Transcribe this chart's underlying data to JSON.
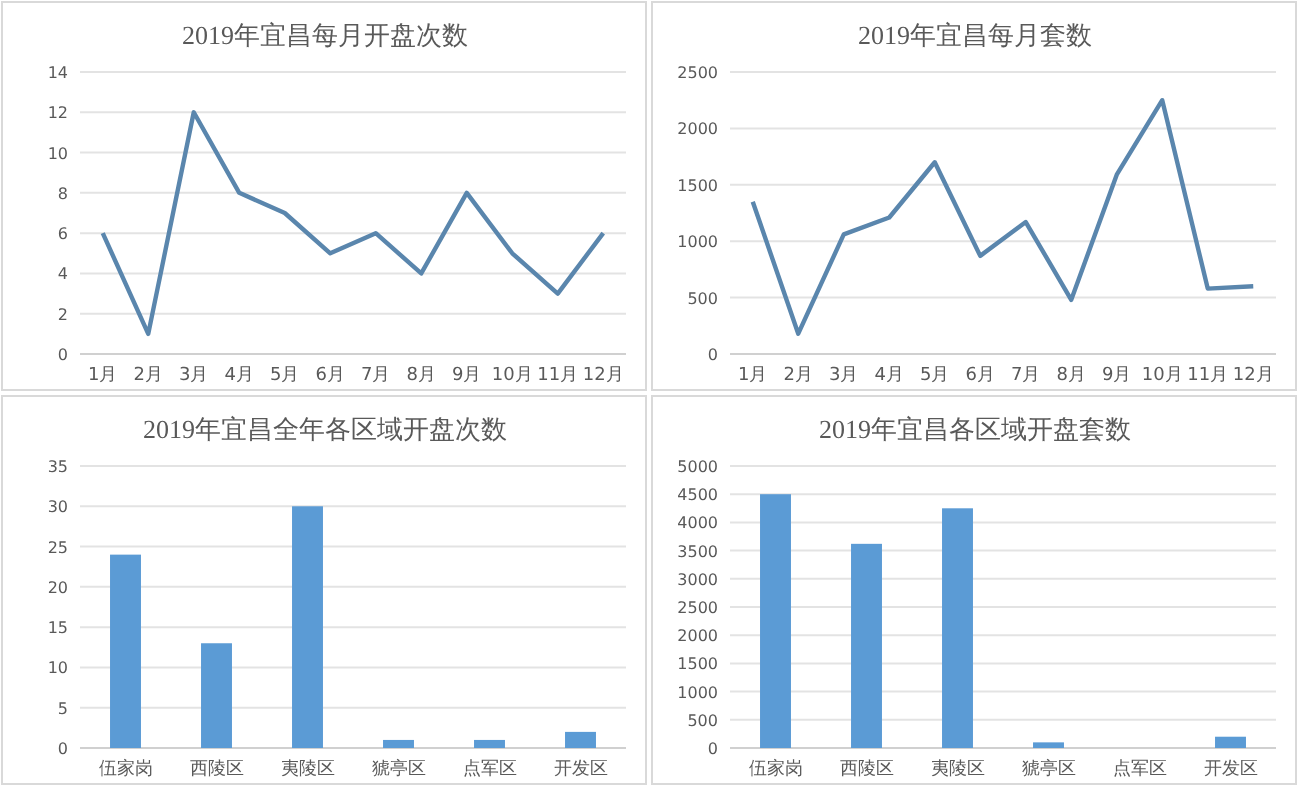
{
  "chart_data": [
    {
      "type": "line",
      "title": "2019年宜昌每月开盘次数",
      "categories": [
        "1月",
        "2月",
        "3月",
        "4月",
        "5月",
        "6月",
        "7月",
        "8月",
        "9月",
        "10月",
        "11月",
        "12月"
      ],
      "series": [
        {
          "color": "#5a86ad",
          "values": [
            6,
            1,
            12,
            8,
            7,
            5,
            6,
            4,
            8,
            5,
            3,
            6
          ]
        }
      ],
      "ylim": [
        0,
        14
      ],
      "yticks": [
        0,
        2,
        4,
        6,
        8,
        10,
        12,
        14
      ],
      "grid": "y",
      "marker": "none",
      "line_style": "solid"
    },
    {
      "type": "line",
      "title": "2019年宜昌每月套数",
      "categories": [
        "1月",
        "2月",
        "3月",
        "4月",
        "5月",
        "6月",
        "7月",
        "8月",
        "9月",
        "10月",
        "11月",
        "12月"
      ],
      "series": [
        {
          "color": "#5a86ad",
          "values": [
            1350,
            180,
            1060,
            1210,
            1700,
            870,
            1170,
            480,
            1590,
            2250,
            580,
            600
          ]
        }
      ],
      "ylim": [
        0,
        2500
      ],
      "yticks": [
        0,
        500,
        1000,
        1500,
        2000,
        2500
      ],
      "grid": "y",
      "marker": "none",
      "line_style": "solid"
    },
    {
      "type": "bar",
      "title": "2019年宜昌全年各区域开盘次数",
      "categories": [
        "伍家岗",
        "西陵区",
        "夷陵区",
        "猇亭区",
        "点军区",
        "开发区"
      ],
      "series": [
        {
          "color": "#5b9bd5",
          "values": [
            24,
            13,
            30,
            1,
            1,
            2
          ]
        }
      ],
      "ylim": [
        0,
        35
      ],
      "yticks": [
        0,
        5,
        10,
        15,
        20,
        25,
        30,
        35
      ],
      "grid": "y"
    },
    {
      "type": "bar",
      "title": "2019年宜昌各区域开盘套数",
      "categories": [
        "伍家岗",
        "西陵区",
        "夷陵区",
        "猇亭区",
        "点军区",
        "开发区"
      ],
      "series": [
        {
          "color": "#5b9bd5",
          "values": [
            4500,
            3620,
            4250,
            100,
            null,
            200
          ]
        }
      ],
      "ylim": [
        0,
        5000
      ],
      "yticks": [
        0,
        500,
        1000,
        1500,
        2000,
        2500,
        3000,
        3500,
        4000,
        4500,
        5000
      ],
      "grid": "y"
    }
  ]
}
